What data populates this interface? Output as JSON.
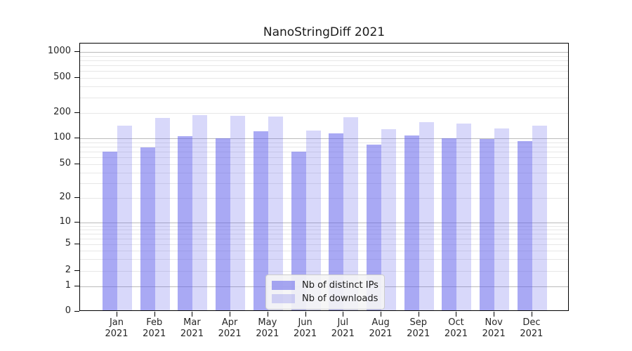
{
  "chart": {
    "title": "NanoStringDiff 2021"
  },
  "chart_data": {
    "type": "bar",
    "title": "NanoStringDiff 2021",
    "months": [
      "Jan",
      "Feb",
      "Mar",
      "Apr",
      "May",
      "Jun",
      "Jul",
      "Aug",
      "Sep",
      "Oct",
      "Nov",
      "Dec"
    ],
    "year": "2021",
    "series": [
      {
        "name": "Nb of distinct IPs",
        "color": "rgba(99,99,235,0.55)",
        "values": [
          68,
          76,
          101,
          96,
          116,
          67,
          110,
          82,
          104,
          97,
          94,
          89
        ]
      },
      {
        "name": "Nb of downloads",
        "color": "rgba(99,99,235,0.25)",
        "values": [
          135,
          167,
          183,
          178,
          175,
          119,
          170,
          123,
          150,
          143,
          127,
          135
        ]
      }
    ],
    "y_axis": {
      "scale": "symlog",
      "tick_labels": [
        0,
        1,
        2,
        5,
        10,
        20,
        50,
        100,
        200,
        500,
        1000
      ],
      "major_gridlines": [
        1,
        10,
        100,
        1000
      ],
      "minor_gridlines": [
        2,
        3,
        4,
        5,
        6,
        7,
        8,
        9,
        20,
        30,
        40,
        50,
        60,
        70,
        80,
        90,
        200,
        300,
        400,
        500,
        600,
        700,
        800,
        900
      ],
      "range": [
        0,
        1000
      ]
    },
    "legend": {
      "position": "bottom-center",
      "entries": [
        "Nb of distinct IPs",
        "Nb of downloads"
      ]
    },
    "colors": {
      "bar_base": "#6363eb",
      "major_grid": "#bbbbbb",
      "minor_grid": "#e7e7e7",
      "spine": "#000000",
      "text": "#262626"
    },
    "grid": true
  }
}
